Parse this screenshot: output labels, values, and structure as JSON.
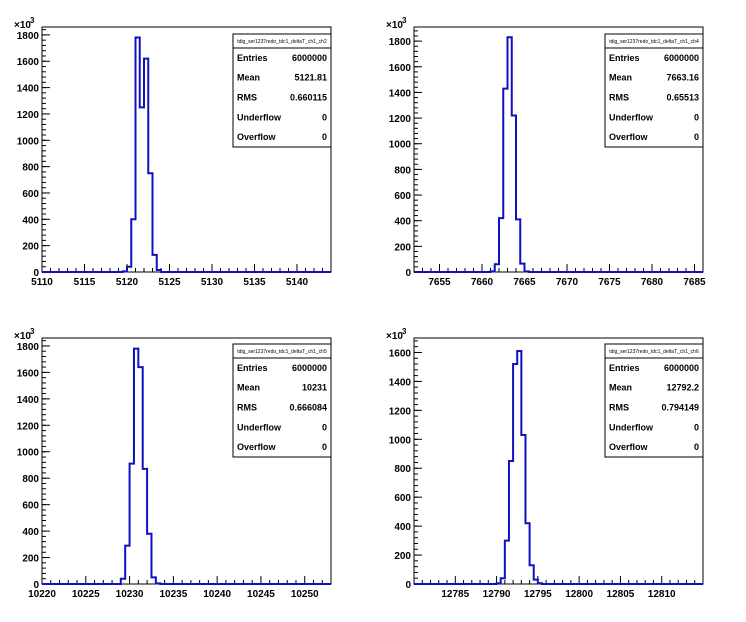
{
  "chart_data": [
    {
      "type": "histogram",
      "title": "tdig_ser1237redo_tdc1_deltaT_ch1_ch2",
      "y_exponent_label": "×10",
      "y_exponent": "3",
      "xlim": [
        5110,
        5144
      ],
      "ylim": [
        0,
        1860
      ],
      "x_ticks": [
        5110,
        5115,
        5120,
        5125,
        5130,
        5135,
        5140
      ],
      "x_tick_labels": [
        "5110",
        "5115",
        "5120",
        "5125",
        "5130",
        "5135",
        "5140"
      ],
      "y_ticks": [
        0,
        200,
        400,
        600,
        800,
        1000,
        1200,
        1400,
        1600,
        1800
      ],
      "y_tick_labels": [
        "0",
        "200",
        "400",
        "600",
        "800",
        "1000",
        "1200",
        "1400",
        "1600",
        "1800"
      ],
      "bin_width": 0.5,
      "bins": [
        [
          5119.5,
          5
        ],
        [
          5120.0,
          40
        ],
        [
          5120.5,
          400
        ],
        [
          5121.0,
          1780
        ],
        [
          5121.5,
          1250
        ],
        [
          5122.0,
          1620
        ],
        [
          5122.5,
          750
        ],
        [
          5123.0,
          130
        ],
        [
          5123.5,
          15
        ]
      ],
      "stats": [
        {
          "label": "Entries",
          "value": "6000000"
        },
        {
          "label": "Mean",
          "value": "5121.81"
        },
        {
          "label": "RMS",
          "value": "0.660115"
        },
        {
          "label": "Underflow",
          "value": "0"
        },
        {
          "label": "Overflow",
          "value": "0"
        }
      ]
    },
    {
      "type": "histogram",
      "title": "tdig_ser1237redo_tdc1_deltaT_ch1_ch4",
      "y_exponent_label": "×10",
      "y_exponent": "3",
      "xlim": [
        7652,
        7686
      ],
      "ylim": [
        0,
        1910
      ],
      "x_ticks": [
        7655,
        7660,
        7665,
        7670,
        7675,
        7680,
        7685
      ],
      "x_tick_labels": [
        "7655",
        "7660",
        "7665",
        "7670",
        "7675",
        "7680",
        "7685"
      ],
      "y_ticks": [
        0,
        200,
        400,
        600,
        800,
        1000,
        1200,
        1400,
        1600,
        1800
      ],
      "y_tick_labels": [
        "0",
        "200",
        "400",
        "600",
        "800",
        "1000",
        "1200",
        "1400",
        "1600",
        "1800"
      ],
      "bin_width": 0.5,
      "bins": [
        [
          7661.0,
          5
        ],
        [
          7661.5,
          60
        ],
        [
          7662.0,
          420
        ],
        [
          7662.5,
          1430
        ],
        [
          7663.0,
          1830
        ],
        [
          7663.5,
          1220
        ],
        [
          7664.0,
          410
        ],
        [
          7664.5,
          65
        ],
        [
          7665.0,
          5
        ]
      ],
      "stats": [
        {
          "label": "Entries",
          "value": "6000000"
        },
        {
          "label": "Mean",
          "value": "7663.16"
        },
        {
          "label": "RMS",
          "value": "0.65513"
        },
        {
          "label": "Underflow",
          "value": "0"
        },
        {
          "label": "Overflow",
          "value": "0"
        }
      ]
    },
    {
      "type": "histogram",
      "title": "tdig_ser1237redo_tdc1_deltaT_ch1_ch5",
      "y_exponent_label": "×10",
      "y_exponent": "3",
      "xlim": [
        10220,
        10253
      ],
      "ylim": [
        0,
        1860
      ],
      "x_ticks": [
        10220,
        10225,
        10230,
        10235,
        10240,
        10245,
        10250
      ],
      "x_tick_labels": [
        "10220",
        "10225",
        "10230",
        "10235",
        "10240",
        "10245",
        "10250"
      ],
      "y_ticks": [
        0,
        200,
        400,
        600,
        800,
        1000,
        1200,
        1400,
        1600,
        1800
      ],
      "y_tick_labels": [
        "0",
        "200",
        "400",
        "600",
        "800",
        "1000",
        "1200",
        "1400",
        "1600",
        "1800"
      ],
      "bin_width": 0.5,
      "bins": [
        [
          10229.0,
          40
        ],
        [
          10229.5,
          290
        ],
        [
          10230.0,
          910
        ],
        [
          10230.5,
          1780
        ],
        [
          10231.0,
          1640
        ],
        [
          10231.5,
          870
        ],
        [
          10232.0,
          380
        ],
        [
          10232.5,
          50
        ],
        [
          10233.0,
          5
        ]
      ],
      "stats": [
        {
          "label": "Entries",
          "value": "6000000"
        },
        {
          "label": "Mean",
          "value": "10231"
        },
        {
          "label": "RMS",
          "value": "0.666084"
        },
        {
          "label": "Underflow",
          "value": "0"
        },
        {
          "label": "Overflow",
          "value": "0"
        }
      ]
    },
    {
      "type": "histogram",
      "title": "tdig_ser1237redo_tdc1_deltaT_ch1_ch6",
      "y_exponent_label": "×10",
      "y_exponent": "3",
      "xlim": [
        12780,
        12815
      ],
      "ylim": [
        0,
        1700
      ],
      "x_ticks": [
        12785,
        12790,
        12795,
        12800,
        12805,
        12810
      ],
      "x_tick_labels": [
        "12785",
        "12790",
        "12795",
        "12800",
        "12805",
        "12810"
      ],
      "y_ticks": [
        0,
        200,
        400,
        600,
        800,
        1000,
        1200,
        1400,
        1600
      ],
      "y_tick_labels": [
        "0",
        "200",
        "400",
        "600",
        "800",
        "1000",
        "1200",
        "1400",
        "1600"
      ],
      "bin_width": 0.5,
      "bins": [
        [
          12790.0,
          5
        ],
        [
          12790.5,
          40
        ],
        [
          12791.0,
          300
        ],
        [
          12791.5,
          850
        ],
        [
          12792.0,
          1520
        ],
        [
          12792.5,
          1610
        ],
        [
          12793.0,
          1030
        ],
        [
          12793.5,
          420
        ],
        [
          12794.0,
          130
        ],
        [
          12794.5,
          30
        ],
        [
          12795.0,
          5
        ]
      ],
      "stats": [
        {
          "label": "Entries",
          "value": "6000000"
        },
        {
          "label": "Mean",
          "value": "12792.2"
        },
        {
          "label": "RMS",
          "value": "0.794149"
        },
        {
          "label": "Underflow",
          "value": "0"
        },
        {
          "label": "Overflow",
          "value": "0"
        }
      ]
    }
  ],
  "colors": {
    "histogram_line": "#1010c0",
    "axis": "#000000",
    "background": "#ffffff"
  }
}
